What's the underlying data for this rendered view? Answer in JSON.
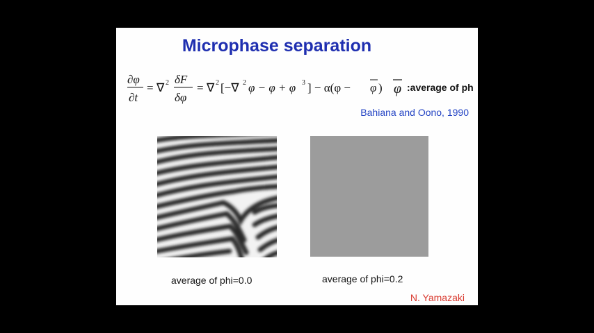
{
  "slide": {
    "title": "Microphase separation",
    "equation": {
      "lhs_num": "∂φ",
      "lhs_den": "∂t",
      "eq1": "=",
      "nabla2": "∇",
      "sq": "2",
      "frac_num": "δF",
      "frac_den": "δφ",
      "eq2": "=",
      "rhs": "∇",
      "rhs_sq": "2",
      "bracket_open": "[−∇",
      "bracket_sq": "2",
      "bracket_mid": "φ − φ + φ",
      "cube": "3",
      "bracket_close": "] − α(φ − ",
      "phibar_inner": "φ",
      "close_paren": ")",
      "phibar_label": "φ",
      "phi_note": ":average of phi"
    },
    "citation": "Bahiana and Oono, 1990",
    "left_caption": "average of phi=0.0",
    "right_caption": "average of phi=0.2",
    "author": "N. Yamazaki"
  },
  "colors": {
    "background": "#000000",
    "slide": "#fefefe",
    "title": "#1f2fb0",
    "citation": "#2444c4",
    "author": "#d93a2f",
    "uniform_gray": "#9c9c9c"
  }
}
